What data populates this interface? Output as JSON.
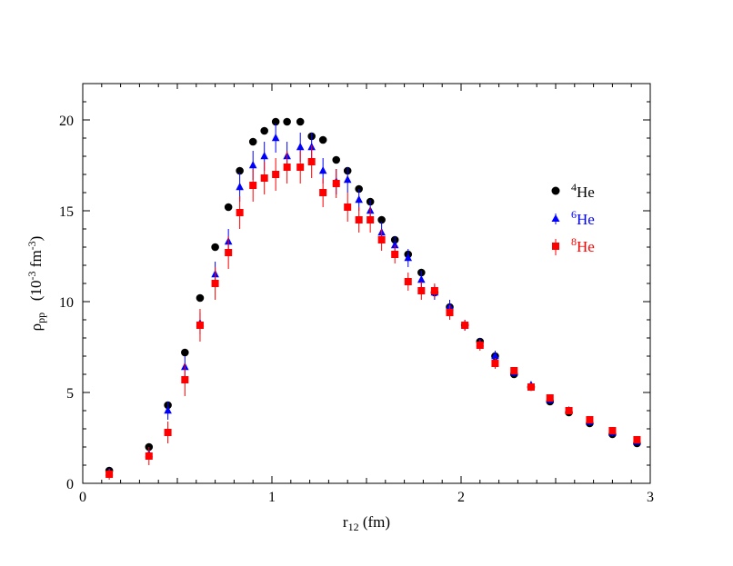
{
  "chart_data": {
    "type": "scatter",
    "title": "",
    "xlabel": {
      "main": "r",
      "sub": "12",
      "rest": " (fm)"
    },
    "ylabel": {
      "main": "ρ",
      "sub": "pp",
      "rest": "   (10",
      "sup1": "-3",
      "mid": " fm",
      "sup2": "-3",
      "end": ")"
    },
    "xlim": [
      0,
      3
    ],
    "ylim": [
      0,
      21
    ],
    "xticks": [
      "0",
      "1",
      "2",
      "3"
    ],
    "yticks": [
      "0",
      "5",
      "10",
      "15",
      "20"
    ],
    "grid": false,
    "legend_position": "right",
    "series": [
      {
        "name": "He",
        "mass_number": "4",
        "color": "#000000",
        "marker": "circle",
        "x": [
          0.14,
          0.35,
          0.45,
          0.54,
          0.62,
          0.7,
          0.77,
          0.83,
          0.9,
          0.96,
          1.02,
          1.08,
          1.15,
          1.21,
          1.27,
          1.34,
          1.4,
          1.46,
          1.52,
          1.58,
          1.65,
          1.72,
          1.79,
          1.86,
          1.94,
          2.02,
          2.1,
          2.18,
          2.28,
          2.37,
          2.47,
          2.57,
          2.68,
          2.8,
          2.93
        ],
        "y": [
          0.7,
          2.0,
          4.3,
          7.2,
          10.2,
          13.0,
          15.2,
          17.2,
          18.8,
          19.4,
          19.9,
          19.9,
          19.9,
          19.1,
          18.9,
          17.8,
          17.2,
          16.2,
          15.5,
          14.5,
          13.4,
          12.6,
          11.6,
          10.5,
          9.7,
          8.7,
          7.8,
          7.0,
          6.0,
          5.3,
          4.5,
          3.9,
          3.3,
          2.7,
          2.2
        ]
      },
      {
        "name": "He",
        "mass_number": "6",
        "color": "#0000ff",
        "marker": "triangle",
        "x": [
          0.14,
          0.35,
          0.45,
          0.54,
          0.62,
          0.7,
          0.77,
          0.83,
          0.9,
          0.96,
          1.02,
          1.08,
          1.15,
          1.21,
          1.27,
          1.34,
          1.4,
          1.46,
          1.52,
          1.58,
          1.65,
          1.72,
          1.79,
          1.86,
          1.94,
          2.02,
          2.1,
          2.18,
          2.28,
          2.37,
          2.47,
          2.57,
          2.68,
          2.8,
          2.93
        ],
        "y": [
          0.6,
          1.6,
          4.0,
          6.4,
          8.8,
          11.5,
          13.3,
          16.3,
          17.5,
          18.0,
          19.0,
          18.0,
          18.5,
          18.5,
          17.2,
          16.6,
          16.7,
          15.6,
          15.0,
          13.8,
          13.1,
          12.4,
          11.2,
          10.5,
          9.7,
          8.7,
          7.7,
          7.0,
          6.1,
          5.4,
          4.6,
          4.0,
          3.4,
          2.8,
          2.3
        ],
        "err": [
          0.1,
          0.3,
          0.5,
          0.6,
          0.6,
          0.7,
          0.7,
          0.8,
          0.8,
          0.8,
          0.8,
          0.8,
          0.8,
          0.8,
          0.7,
          0.7,
          0.7,
          0.6,
          0.6,
          0.6,
          0.5,
          0.5,
          0.5,
          0.4,
          0.4,
          0.3,
          0.3,
          0.3,
          0.2,
          0.2,
          0.2,
          0.2,
          0.2,
          0.2,
          0.1
        ]
      },
      {
        "name": "He",
        "mass_number": "8",
        "color": "#ff0000",
        "marker": "square",
        "x": [
          0.14,
          0.35,
          0.45,
          0.54,
          0.62,
          0.7,
          0.77,
          0.83,
          0.9,
          0.96,
          1.02,
          1.08,
          1.15,
          1.21,
          1.27,
          1.34,
          1.4,
          1.46,
          1.52,
          1.58,
          1.65,
          1.72,
          1.79,
          1.86,
          1.94,
          2.02,
          2.1,
          2.18,
          2.28,
          2.37,
          2.47,
          2.57,
          2.68,
          2.8,
          2.93
        ],
        "y": [
          0.5,
          1.5,
          2.8,
          5.7,
          8.7,
          11.0,
          12.7,
          14.9,
          16.4,
          16.8,
          17.0,
          17.4,
          17.4,
          17.7,
          16.0,
          16.5,
          15.2,
          14.5,
          14.5,
          13.4,
          12.6,
          11.1,
          10.6,
          10.6,
          9.4,
          8.7,
          7.6,
          6.6,
          6.2,
          5.3,
          4.7,
          4.0,
          3.5,
          2.9,
          2.4
        ],
        "err": [
          0.3,
          0.5,
          0.6,
          0.9,
          0.9,
          0.9,
          0.9,
          0.9,
          0.9,
          0.9,
          0.9,
          0.9,
          0.9,
          0.9,
          0.8,
          0.8,
          0.8,
          0.7,
          0.7,
          0.6,
          0.5,
          0.5,
          0.5,
          0.4,
          0.4,
          0.3,
          0.3,
          0.3,
          0.2,
          0.2,
          0.2,
          0.2,
          0.2,
          0.2,
          0.1
        ]
      }
    ]
  }
}
